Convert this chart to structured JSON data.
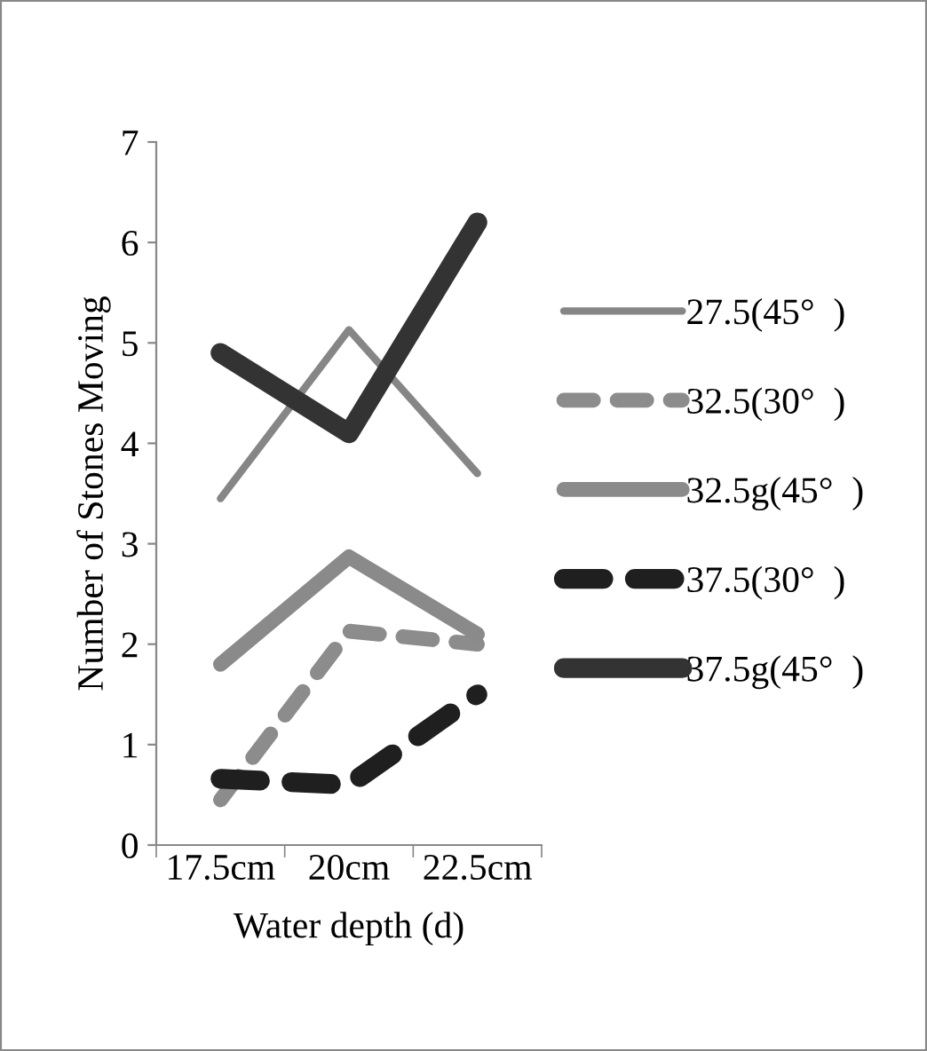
{
  "chart_data": {
    "type": "line",
    "xlabel": "Water depth (d)",
    "ylabel": "Number of Stones Moving",
    "categories": [
      "17.5cm",
      "20cm",
      "22.5cm"
    ],
    "series": [
      {
        "name": "27.5(45°  )",
        "color": "#868686",
        "line_style": "solid",
        "values": [
          3.45,
          5.13,
          3.7
        ]
      },
      {
        "name": "32.5(30°  )",
        "color": "#8c8c8c",
        "line_style": "dashed",
        "values": [
          0.45,
          2.13,
          2.0
        ]
      },
      {
        "name": "32.5g(45°  )",
        "color": "#8a8a8a",
        "line_style": "solid",
        "values": [
          1.8,
          2.87,
          2.1
        ]
      },
      {
        "name": "37.5(30°  )",
        "color": "#1f1f1f",
        "line_style": "dashed",
        "values": [
          0.66,
          0.6,
          1.5
        ]
      },
      {
        "name": "37.5g(45°  )",
        "color": "#333333",
        "line_style": "solid",
        "values": [
          4.9,
          4.1,
          6.2
        ]
      }
    ],
    "ylim": [
      0,
      7
    ],
    "yticks": [
      0,
      1,
      2,
      3,
      4,
      5,
      6,
      7
    ],
    "grid": false,
    "legend": "right",
    "marker": "none"
  }
}
